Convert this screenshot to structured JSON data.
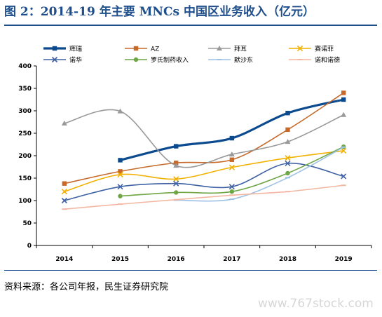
{
  "title": "图 2：2014-19 年主要 MNCs 中国区业务收入（亿元）",
  "source": "资料来源：各公司年报，民生证券研究院",
  "watermark": "www.767stock.com",
  "chart_data": {
    "type": "line",
    "title": "",
    "xlabel": "",
    "ylabel": "",
    "categories": [
      "2014",
      "2015",
      "2016",
      "2017",
      "2018",
      "2019"
    ],
    "ylim": [
      0,
      400
    ],
    "yticks": [
      0,
      50,
      100,
      150,
      200,
      250,
      300,
      350,
      400
    ],
    "grid": false,
    "legend_position": "top",
    "series": [
      {
        "name": "辉瑞",
        "color": "#0b4a8f",
        "marker": "square",
        "width": 3.2,
        "values": [
          null,
          190,
          221,
          239,
          295,
          325
        ]
      },
      {
        "name": "AZ",
        "color": "#c6692b",
        "marker": "square",
        "width": 1.6,
        "values": [
          138,
          165,
          184,
          191,
          258,
          340
        ]
      },
      {
        "name": "拜耳",
        "color": "#999999",
        "marker": "triangle",
        "width": 1.6,
        "values": [
          272,
          299,
          178,
          203,
          231,
          291
        ]
      },
      {
        "name": "赛诺菲",
        "color": "#f2b100",
        "marker": "x",
        "width": 1.6,
        "values": [
          120,
          158,
          148,
          174,
          195,
          211
        ]
      },
      {
        "name": "诺华",
        "color": "#3f62a5",
        "marker": "x",
        "width": 1.6,
        "values": [
          100,
          131,
          138,
          131,
          183,
          154
        ]
      },
      {
        "name": "罗氏制药收入",
        "color": "#6ea545",
        "marker": "circle",
        "width": 1.6,
        "values": [
          null,
          110,
          118,
          120,
          161,
          220
        ]
      },
      {
        "name": "默沙东",
        "color": "#9ec1e6",
        "marker": "dash",
        "width": 1.6,
        "values": [
          null,
          null,
          101,
          103,
          151,
          219
        ]
      },
      {
        "name": "诺和诺德",
        "color": "#f3b7a1",
        "marker": "dash",
        "width": 1.6,
        "values": [
          81,
          92,
          102,
          112,
          120,
          134
        ]
      }
    ]
  }
}
